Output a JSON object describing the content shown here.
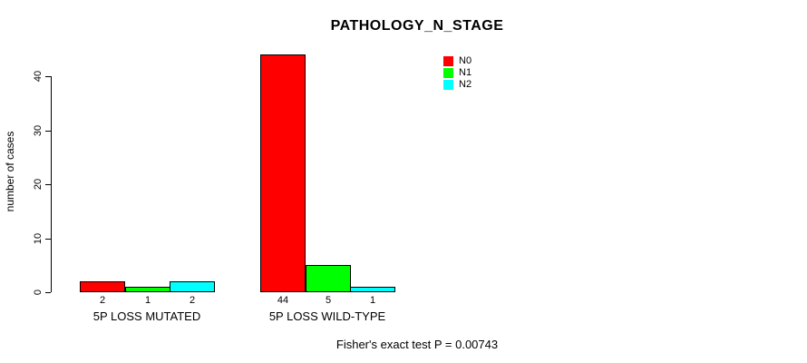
{
  "chart_data": {
    "type": "bar",
    "title": "PATHOLOGY_N_STAGE",
    "ylabel": "number of cases",
    "xlabel": "",
    "categories": [
      "5P LOSS MUTATED",
      "5P LOSS WILD-TYPE"
    ],
    "series": [
      {
        "name": "N0",
        "color": "#ff0000",
        "values": [
          2,
          44
        ]
      },
      {
        "name": "N1",
        "color": "#00ff00",
        "values": [
          1,
          5
        ]
      },
      {
        "name": "N2",
        "color": "#00ffff",
        "values": [
          2,
          1
        ]
      }
    ],
    "yticks": [
      0,
      10,
      20,
      30,
      40
    ],
    "ylim": [
      0,
      44
    ],
    "grid": false,
    "legend_position": "top-right",
    "bar_value_labels_shown": true,
    "footnote": "Fisher's exact test P = 0.00743"
  }
}
